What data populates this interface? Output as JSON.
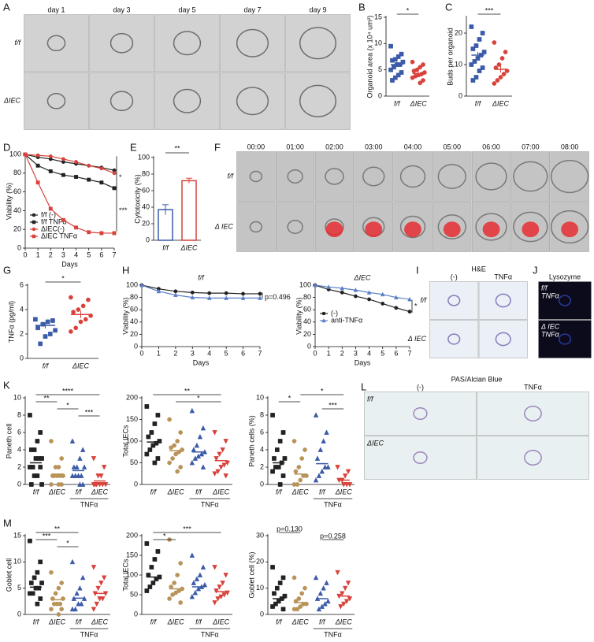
{
  "images": [
    {
      "panel": "A",
      "columns": [
        "day 1",
        "day 3",
        "day 5",
        "day 7",
        "day 9"
      ],
      "rows": [
        "f/f",
        "ΔIEC"
      ]
    },
    {
      "panel": "F",
      "columns": [
        "00:00",
        "01:00",
        "02:00",
        "03:00",
        "04:00",
        "05:00",
        "06:00",
        "07:00",
        "08:00"
      ],
      "rows": [
        "f/f",
        "Δ IEC"
      ]
    },
    {
      "panel": "I",
      "title": "H&E",
      "columns": [
        "(-)",
        "TNFα"
      ],
      "rows": [
        "f/f",
        "Δ IEC"
      ]
    },
    {
      "panel": "J",
      "title": "Lysozyme",
      "rows": [
        [
          "f/f",
          "TNFα"
        ],
        [
          "Δ IEC",
          "TNFα"
        ]
      ]
    },
    {
      "panel": "L",
      "title": "PAS/Alcian Blue",
      "columns": [
        "(-)",
        "TNFα"
      ],
      "rows": [
        "f/f",
        "ΔIEC"
      ]
    }
  ],
  "chart_data": [
    {
      "panel": "B",
      "type": "dot",
      "ylabel": "Organoid area (x 10⁴ um²)",
      "ylim": [
        0,
        15
      ],
      "yticks": [
        0,
        5,
        10,
        15
      ],
      "categories": [
        "f/f",
        "ΔIEC"
      ],
      "groups": [
        {
          "color": "#3b5ba9",
          "marker": "square",
          "values": [
            9.5,
            8,
            7.5,
            7,
            6.8,
            6.5,
            6,
            6,
            5.5,
            5,
            4.5,
            4,
            3.5,
            3
          ],
          "mean": 6,
          "sem": 0.5
        },
        {
          "color": "#d8423b",
          "marker": "circle",
          "values": [
            6.5,
            6,
            5.5,
            5,
            4.8,
            4.5,
            4.2,
            4,
            3.8,
            3.5,
            3,
            2.5
          ],
          "mean": 4.3,
          "sem": 0.3
        }
      ],
      "significance": [
        {
          "label": "*",
          "from": 0,
          "to": 1
        }
      ]
    },
    {
      "panel": "C",
      "type": "dot",
      "ylabel": "Buds per organoid",
      "ylim": [
        0,
        25
      ],
      "yticks": [
        0,
        10,
        20
      ],
      "categories": [
        "f/f",
        "ΔIEC"
      ],
      "groups": [
        {
          "color": "#3b5ba9",
          "marker": "square",
          "values": [
            22,
            20,
            18,
            16,
            15,
            14,
            13,
            12,
            11,
            10,
            9,
            8,
            6,
            5
          ],
          "mean": 13,
          "sem": 1
        },
        {
          "color": "#d8423b",
          "marker": "circle",
          "values": [
            17,
            14,
            12,
            10,
            9,
            8,
            7,
            6,
            5,
            4
          ],
          "mean": 8.5,
          "sem": 1
        }
      ],
      "significance": [
        {
          "label": "***",
          "from": 0,
          "to": 1
        }
      ]
    },
    {
      "panel": "D",
      "type": "line",
      "xlabel": "Days",
      "ylabel": "Viability (%)",
      "x": [
        0,
        1,
        2,
        3,
        4,
        5,
        6,
        7
      ],
      "xlim": [
        0,
        7
      ],
      "xticks": [
        0,
        1,
        2,
        3,
        4,
        5,
        6,
        7
      ],
      "ylim": [
        0,
        100
      ],
      "yticks": [
        0,
        20,
        40,
        60,
        80,
        100
      ],
      "series": [
        {
          "name": "f/f (-)",
          "color": "#222222",
          "marker": "circle",
          "values": [
            100,
            97,
            95,
            92,
            90,
            88,
            86,
            83
          ]
        },
        {
          "name": "f/f TNFα",
          "color": "#222222",
          "marker": "square",
          "values": [
            100,
            88,
            82,
            78,
            76,
            73,
            70,
            64
          ]
        },
        {
          "name": "ΔIEC(-)",
          "color": "#d8423b",
          "marker": "circle",
          "values": [
            100,
            99,
            98,
            95,
            92,
            88,
            85,
            80
          ]
        },
        {
          "name": "ΔIEC TNFα",
          "color": "#d8423b",
          "marker": "square",
          "values": [
            100,
            70,
            42,
            30,
            22,
            17,
            16,
            16
          ]
        }
      ],
      "annotations": [
        "*",
        "***"
      ]
    },
    {
      "panel": "E",
      "type": "bar",
      "ylabel": "Cytotoxicity (%)",
      "ylim": [
        0,
        100
      ],
      "yticks": [
        0,
        20,
        40,
        60,
        80,
        100
      ],
      "categories": [
        "f/f",
        "ΔIEC"
      ],
      "values": [
        37,
        72
      ],
      "errors": [
        6,
        3
      ],
      "colors": [
        "#3b5ba9",
        "#d8423b"
      ],
      "annotations": [
        "**"
      ]
    },
    {
      "panel": "G",
      "type": "dot",
      "ylabel": "TNFα (pg/ml)",
      "ylim": [
        0,
        6
      ],
      "yticks": [
        0,
        2,
        4,
        6
      ],
      "categories": [
        "f/f",
        "ΔIEC"
      ],
      "groups": [
        {
          "color": "#3b5ba9",
          "marker": "square",
          "values": [
            3.2,
            3.1,
            3,
            2.8,
            2.5,
            2.3,
            2,
            1.8,
            1.2
          ],
          "mean": 2.7,
          "sem": 0.25
        },
        {
          "color": "#d8423b",
          "marker": "circle",
          "values": [
            5,
            4.8,
            4.3,
            4,
            3.8,
            3.5,
            3.2,
            3,
            2.5,
            2.2
          ],
          "mean": 3.6,
          "sem": 0.3
        }
      ],
      "significance": [
        {
          "label": "*",
          "from": 0,
          "to": 1
        }
      ]
    },
    {
      "panel": "H",
      "type": "line",
      "title": "f/f",
      "xlabel": "Days",
      "ylabel": "Viability (%)",
      "x": [
        0,
        1,
        2,
        3,
        4,
        5,
        6,
        7
      ],
      "xlim": [
        0,
        7
      ],
      "xticks": [
        0,
        1,
        2,
        3,
        4,
        5,
        6,
        7
      ],
      "ylim": [
        0,
        100
      ],
      "yticks": [
        0,
        20,
        40,
        60,
        80,
        100
      ],
      "series": [
        {
          "color": "#222222",
          "marker": "circle",
          "values": [
            100,
            94,
            90,
            88,
            87,
            87,
            86,
            86
          ]
        },
        {
          "color": "#5b7fc7",
          "marker": "triangle",
          "values": [
            100,
            90,
            84,
            80,
            79,
            79,
            79,
            79
          ]
        }
      ],
      "annotations": [
        "p=0.496"
      ]
    },
    {
      "type": "line",
      "title": "ΔIEC",
      "xlabel": "Days",
      "ylabel": "Viability (%)",
      "x": [
        0,
        1,
        2,
        3,
        4,
        5,
        6,
        7
      ],
      "xlim": [
        0,
        7
      ],
      "xticks": [
        0,
        1,
        2,
        3,
        4,
        5,
        6,
        7
      ],
      "ylim": [
        0,
        100
      ],
      "yticks": [
        0,
        20,
        40,
        60,
        80,
        100
      ],
      "series": [
        {
          "name": "(-)",
          "color": "#222222",
          "marker": "circle",
          "values": [
            100,
            93,
            88,
            82,
            77,
            70,
            63,
            57
          ]
        },
        {
          "name": "anti-TNFα",
          "color": "#5b7fc7",
          "marker": "triangle",
          "values": [
            100,
            97,
            95,
            92,
            88,
            85,
            80,
            77
          ]
        }
      ],
      "annotations": [
        "*"
      ]
    },
    {
      "panel": "K",
      "type": "dot",
      "ylabel": "Paneth cell",
      "ylim": [
        0,
        10
      ],
      "yticks": [
        0,
        2,
        4,
        6,
        8,
        10
      ],
      "categories": [
        "f/f",
        "ΔIEC",
        "f/f",
        "ΔIEC"
      ],
      "treatment_label": "TNFα",
      "groups": [
        {
          "color": "#222222",
          "marker": "square",
          "values": [
            8,
            6,
            5,
            4,
            4,
            3,
            3,
            3,
            2,
            2,
            2,
            1,
            1,
            0,
            0
          ],
          "mean": 2.5
        },
        {
          "color": "#b99359",
          "marker": "circle",
          "values": [
            5,
            3,
            2,
            2,
            1,
            1,
            1,
            1,
            1,
            0,
            0,
            0
          ],
          "mean": 1.2
        },
        {
          "color": "#3b5ba9",
          "marker": "triangle",
          "values": [
            5,
            4,
            3,
            2,
            2,
            2,
            1,
            1,
            1,
            1,
            0,
            0
          ],
          "mean": 1.6
        },
        {
          "color": "#d8423b",
          "marker": "down",
          "values": [
            3,
            2,
            1,
            1,
            0,
            0,
            0,
            0,
            0,
            0
          ],
          "mean": 0.4
        }
      ],
      "significance": [
        {
          "label": "****",
          "from": 0,
          "to": 3
        },
        {
          "label": "**",
          "from": 0,
          "to": 1
        },
        {
          "label": "*",
          "from": 1,
          "to": 2
        },
        {
          "label": "***",
          "from": 2,
          "to": 3
        }
      ]
    },
    {
      "type": "dot",
      "ylabel": "Total IECs",
      "ylim": [
        0,
        200
      ],
      "yticks": [
        0,
        50,
        100,
        150,
        200
      ],
      "categories": [
        "f/f",
        "ΔIEC",
        "f/f",
        "ΔIEC"
      ],
      "treatment_label": "TNFα",
      "groups": [
        {
          "color": "#222222",
          "marker": "square",
          "values": [
            180,
            160,
            140,
            120,
            110,
            100,
            95,
            90,
            80,
            70,
            60,
            50
          ],
          "mean": 98
        },
        {
          "color": "#b99359",
          "marker": "circle",
          "values": [
            150,
            120,
            100,
            90,
            85,
            80,
            75,
            70,
            60,
            50,
            40,
            30
          ],
          "mean": 78
        },
        {
          "color": "#3b5ba9",
          "marker": "triangle",
          "values": [
            170,
            130,
            110,
            90,
            80,
            75,
            70,
            65,
            60,
            50,
            40
          ],
          "mean": 75
        },
        {
          "color": "#d8423b",
          "marker": "down",
          "values": [
            120,
            100,
            80,
            70,
            60,
            50,
            45,
            40,
            30,
            25,
            20
          ],
          "mean": 55
        }
      ],
      "significance": [
        {
          "label": "**",
          "from": 0,
          "to": 3
        },
        {
          "label": "*",
          "from": 1,
          "to": 3
        }
      ]
    },
    {
      "type": "dot",
      "ylabel": "Paneth cells (%)",
      "ylim": [
        0,
        10
      ],
      "yticks": [
        0,
        2,
        4,
        6,
        8,
        10
      ],
      "categories": [
        "f/f",
        "ΔIEC",
        "f/f",
        "ΔIEC"
      ],
      "treatment_label": "TNFα",
      "groups": [
        {
          "color": "#222222",
          "marker": "square",
          "values": [
            8,
            6,
            5,
            4,
            3,
            3,
            2.5,
            2,
            2,
            1.5,
            1,
            0
          ],
          "mean": 2.5
        },
        {
          "color": "#b99359",
          "marker": "circle",
          "values": [
            5,
            4,
            3,
            2,
            1.5,
            1,
            1,
            0.5,
            0,
            0
          ],
          "mean": 1.2
        },
        {
          "color": "#3b5ba9",
          "marker": "triangle",
          "values": [
            8,
            6,
            5,
            4,
            3,
            2,
            2,
            1.5,
            1,
            0.5
          ],
          "mean": 2.4
        },
        {
          "color": "#d8423b",
          "marker": "down",
          "values": [
            2,
            1.5,
            1,
            0.5,
            0.5,
            0,
            0,
            0
          ],
          "mean": 0.5
        }
      ],
      "significance": [
        {
          "label": "*",
          "from": 1,
          "to": 3
        },
        {
          "label": "*",
          "from": 0,
          "to": 1
        },
        {
          "label": "***",
          "from": 2,
          "to": 3
        }
      ]
    },
    {
      "panel": "M",
      "type": "dot",
      "ylabel": "Goblet cell",
      "ylim": [
        0,
        15
      ],
      "yticks": [
        0,
        5,
        10,
        15
      ],
      "categories": [
        "f/f",
        "ΔIEC",
        "f/f",
        "ΔIEC"
      ],
      "treatment_label": "TNFα",
      "groups": [
        {
          "color": "#222222",
          "marker": "square",
          "values": [
            14,
            10,
            8,
            7,
            6,
            6,
            5,
            5,
            4,
            4,
            3,
            2
          ],
          "mean": 5.2
        },
        {
          "color": "#b99359",
          "marker": "circle",
          "values": [
            8,
            6,
            5,
            4,
            3,
            3,
            2,
            2,
            2,
            1,
            1,
            0
          ],
          "mean": 2.8
        },
        {
          "color": "#3b5ba9",
          "marker": "triangle",
          "values": [
            10,
            7,
            5,
            4,
            3,
            3,
            2,
            2,
            1,
            1
          ],
          "mean": 3.1
        },
        {
          "color": "#d8423b",
          "marker": "down",
          "values": [
            9,
            7,
            6,
            5,
            4,
            4,
            3,
            3,
            2,
            1
          ],
          "mean": 4
        }
      ],
      "significance": [
        {
          "label": "**",
          "from": 0,
          "to": 2
        },
        {
          "label": "***",
          "from": 0,
          "to": 1
        },
        {
          "label": "*",
          "from": 1,
          "to": 2
        }
      ]
    },
    {
      "type": "dot",
      "ylabel": "Total IECs",
      "ylim": [
        0,
        200
      ],
      "yticks": [
        0,
        50,
        100,
        150,
        200
      ],
      "categories": [
        "f/f",
        "ΔIEC",
        "f/f",
        "ΔIEC"
      ],
      "treatment_label": "TNFα",
      "groups": [
        {
          "color": "#222222",
          "marker": "square",
          "values": [
            180,
            160,
            140,
            120,
            100,
            95,
            90,
            80,
            70,
            60
          ],
          "mean": 95
        },
        {
          "color": "#b99359",
          "marker": "circle",
          "values": [
            190,
            130,
            100,
            80,
            70,
            65,
            60,
            55,
            50,
            40,
            30
          ],
          "mean": 65
        },
        {
          "color": "#3b5ba9",
          "marker": "triangle",
          "values": [
            150,
            120,
            100,
            90,
            80,
            75,
            70,
            65,
            55,
            45
          ],
          "mean": 70
        },
        {
          "color": "#d8423b",
          "marker": "down",
          "values": [
            120,
            100,
            80,
            70,
            60,
            55,
            50,
            45,
            40,
            30
          ],
          "mean": 58
        }
      ],
      "significance": [
        {
          "label": "***",
          "from": 0,
          "to": 3
        },
        {
          "label": "*",
          "from": 0,
          "to": 1
        }
      ]
    },
    {
      "type": "dot",
      "ylabel": "Goblet cell (%)",
      "ylim": [
        0,
        30
      ],
      "yticks": [
        0,
        10,
        20,
        30
      ],
      "categories": [
        "f/f",
        "ΔIEC",
        "f/f",
        "ΔIEC"
      ],
      "treatment_label": "TNFα",
      "groups": [
        {
          "color": "#222222",
          "marker": "square",
          "values": [
            18,
            14,
            12,
            10,
            8,
            7,
            6,
            5,
            4,
            3,
            2
          ],
          "mean": 6
        },
        {
          "color": "#b99359",
          "marker": "circle",
          "values": [
            14,
            10,
            8,
            6,
            5,
            4,
            4,
            3,
            2,
            2
          ],
          "mean": 4.5
        },
        {
          "color": "#3b5ba9",
          "marker": "triangle",
          "values": [
            14,
            12,
            10,
            8,
            6,
            5,
            4,
            3,
            2
          ],
          "mean": 6
        },
        {
          "color": "#d8423b",
          "marker": "down",
          "values": [
            16,
            12,
            10,
            8,
            7,
            6,
            5,
            4,
            3
          ],
          "mean": 7
        }
      ],
      "significance": [
        {
          "label": "p=0.130",
          "from": 0,
          "to": 1
        },
        {
          "label": "p=0.258",
          "from": 2,
          "to": 3
        }
      ]
    }
  ]
}
